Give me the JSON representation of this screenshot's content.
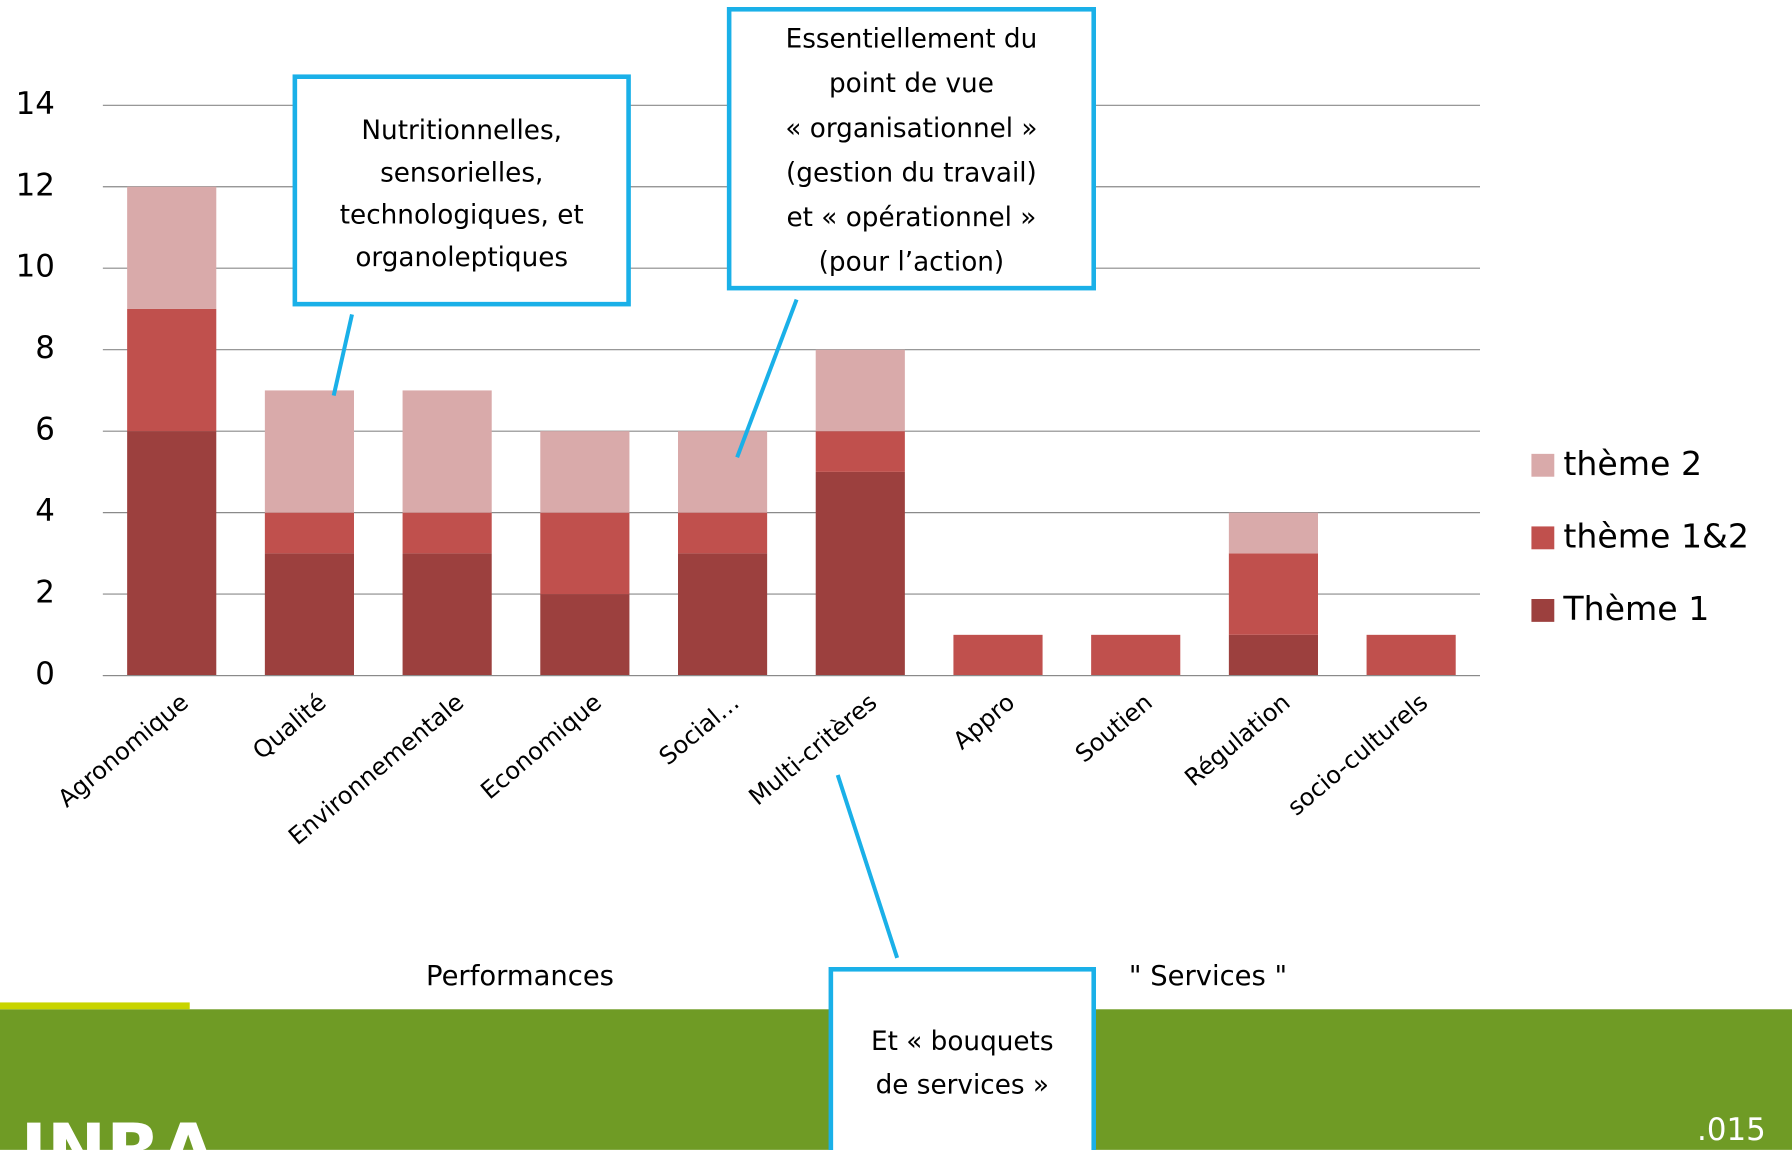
{
  "chart_data": {
    "type": "stacked_bar",
    "categories": [
      "Agronomique",
      "Qualité",
      "Environnementale",
      "Economique",
      "Social…",
      "Multi-critères",
      "Appro",
      "Soutien",
      "Régulation",
      "socio-culturels"
    ],
    "series": [
      {
        "name": "Thème 1",
        "color": "#9c403e",
        "values": [
          6,
          3,
          3,
          2,
          3,
          5,
          0,
          0,
          1,
          0
        ]
      },
      {
        "name": "thème 1&2",
        "color": "#c0504d",
        "values": [
          3,
          1,
          1,
          2,
          1,
          1,
          1,
          1,
          2,
          1
        ]
      },
      {
        "name": "thème 2",
        "color": "#d9aaaa",
        "values": [
          3,
          3,
          3,
          2,
          2,
          2,
          0,
          0,
          1,
          0
        ]
      }
    ],
    "ylim": [
      0,
      14
    ],
    "yticks": [
      0,
      2,
      4,
      6,
      8,
      10,
      12,
      14
    ],
    "grid": true,
    "legend": "right",
    "groups": [
      "Performances",
      "\" Services \""
    ],
    "callouts": [
      {
        "lines": [
          "Nutritionnelles,",
          "sensorielles,",
          "technologiques, et",
          "organoleptiques"
        ]
      },
      {
        "lines": [
          "Essentiellement du",
          "point de vue",
          "« organisationnel »",
          "(gestion du travail)",
          "et « opérationnel »",
          "(pour l’action)"
        ]
      },
      {
        "lines": [
          "Et « bouquets",
          "de services »"
        ]
      }
    ]
  },
  "footer": {
    "logo": "INRA",
    "page": ".015"
  }
}
